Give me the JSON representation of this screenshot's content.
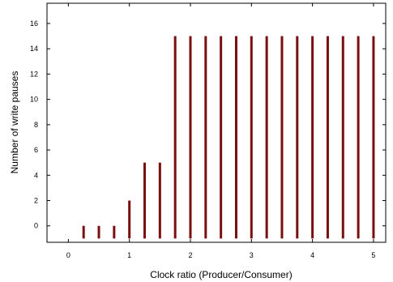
{
  "chart_data": {
    "type": "bar",
    "xlabel": "Clock ratio (Producer/Consumer)",
    "ylabel": "Number of write pauses",
    "xlim": [
      -0.35,
      5.2
    ],
    "ylim": [
      -1.3,
      17.6
    ],
    "xticks": [
      0,
      1,
      2,
      3,
      4,
      5
    ],
    "yticks": [
      0,
      2,
      4,
      6,
      8,
      10,
      12,
      14,
      16
    ],
    "x": [
      0.25,
      0.5,
      0.75,
      1.0,
      1.25,
      1.5,
      1.75,
      2.0,
      2.25,
      2.5,
      2.75,
      3.0,
      3.25,
      3.5,
      3.75,
      4.0,
      4.25,
      4.5,
      4.75,
      5.0
    ],
    "values": [
      0,
      0,
      0,
      2,
      5,
      5,
      15,
      15,
      15,
      15,
      15,
      15,
      15,
      15,
      15,
      15,
      15,
      15,
      15,
      15
    ],
    "grid": false,
    "bar_color": "#7a0f0f"
  }
}
